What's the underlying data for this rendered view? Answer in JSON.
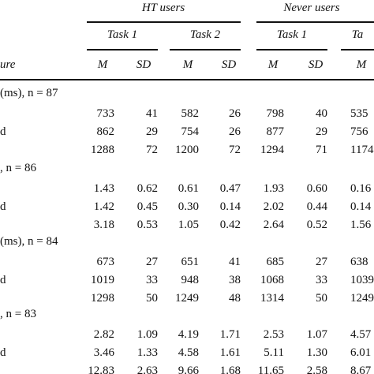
{
  "table": {
    "groups": [
      "HT users",
      "Never users"
    ],
    "tasks": [
      "Task 1",
      "Task 2",
      "Task 1",
      "Ta"
    ],
    "measure_header": "ure",
    "stats": [
      "M",
      "SD",
      "M",
      "SD",
      "M",
      "SD",
      "M"
    ],
    "sections": [
      {
        "label": "(ms), n = 87",
        "rows": [
          {
            "label": "",
            "values": [
              "733",
              "41",
              "582",
              "26",
              "798",
              "40",
              "535"
            ]
          },
          {
            "label": "d",
            "values": [
              "862",
              "29",
              "754",
              "26",
              "877",
              "29",
              "756"
            ]
          },
          {
            "label": "",
            "values": [
              "1288",
              "72",
              "1200",
              "72",
              "1294",
              "71",
              "1174"
            ]
          }
        ]
      },
      {
        "label": ", n = 86",
        "rows": [
          {
            "label": "",
            "values": [
              "1.43",
              "0.62",
              "0.61",
              "0.47",
              "1.93",
              "0.60",
              "0.16"
            ]
          },
          {
            "label": "d",
            "values": [
              "1.42",
              "0.45",
              "0.30",
              "0.14",
              "2.02",
              "0.44",
              "0.14"
            ]
          },
          {
            "label": "",
            "values": [
              "3.18",
              "0.53",
              "1.05",
              "0.42",
              "2.64",
              "0.52",
              "1.56"
            ]
          }
        ]
      },
      {
        "label": "(ms), n = 84",
        "rows": [
          {
            "label": "",
            "values": [
              "673",
              "27",
              "651",
              "41",
              "685",
              "27",
              "638"
            ]
          },
          {
            "label": "d",
            "values": [
              "1019",
              "33",
              "948",
              "38",
              "1068",
              "33",
              "1039"
            ]
          },
          {
            "label": "",
            "values": [
              "1298",
              "50",
              "1249",
              "48",
              "1314",
              "50",
              "1249"
            ]
          }
        ]
      },
      {
        "label": ", n = 83",
        "rows": [
          {
            "label": "",
            "values": [
              "2.82",
              "1.09",
              "4.19",
              "1.71",
              "2.53",
              "1.07",
              "4.57"
            ]
          },
          {
            "label": "d",
            "values": [
              "3.46",
              "1.33",
              "4.58",
              "1.61",
              "5.11",
              "1.30",
              "6.01"
            ]
          },
          {
            "label": "",
            "values": [
              "12.83",
              "2.63",
              "9.66",
              "1.68",
              "11.65",
              "2.58",
              "8.67"
            ]
          }
        ]
      }
    ]
  }
}
